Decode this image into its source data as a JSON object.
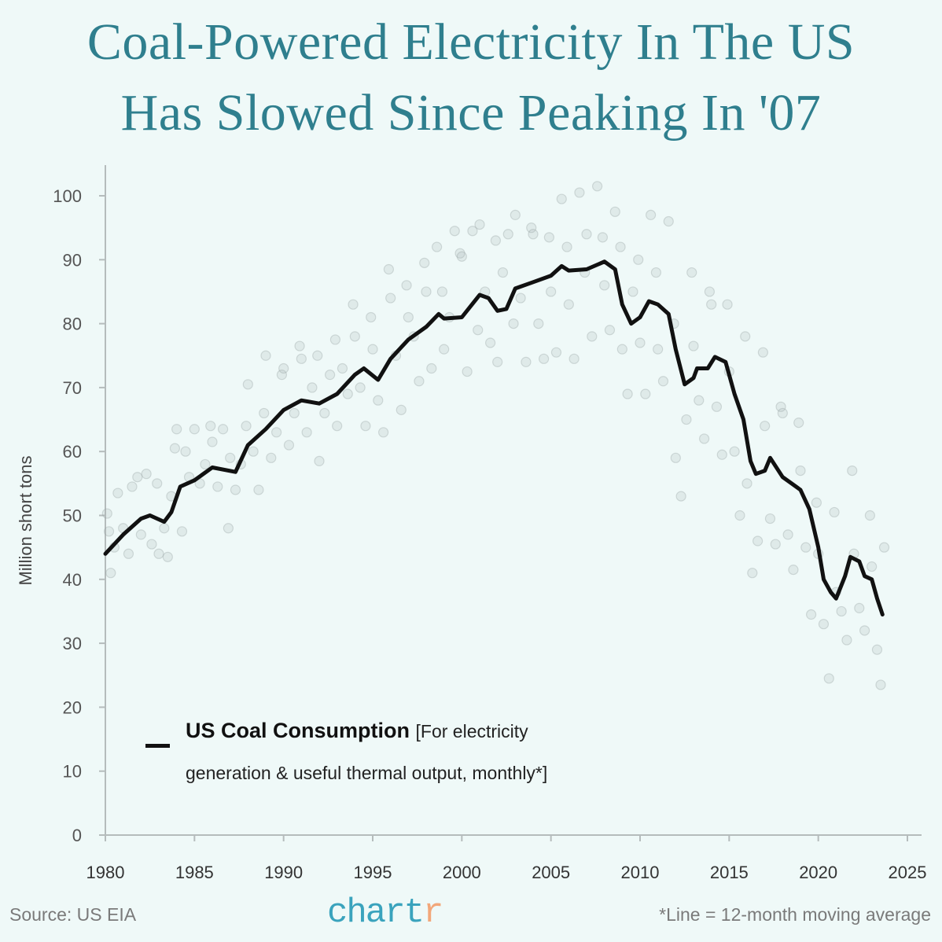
{
  "title_line1": "Coal-Powered Electricity In The US",
  "title_line2": "Has Slowed Since Peaking In '07",
  "source": "Source: US EIA",
  "logo": {
    "main": "chart",
    "accent": "r"
  },
  "footnote": "*Line = 12-month moving average",
  "colors": {
    "title": "#2f7f8e",
    "background": "#eff9f8",
    "line": "#111111",
    "points": "#b9bfbf",
    "logo": "#3aa3bd",
    "logo_accent": "#f2a77a"
  },
  "chart_data": {
    "type": "line",
    "ylabel": "Million short tons",
    "xlabel": "",
    "xlim": [
      1980,
      2025
    ],
    "ylim": [
      0,
      100
    ],
    "xticks": [
      "1980",
      "1985",
      "1990",
      "1995",
      "2000",
      "2005",
      "2010",
      "2015",
      "2020",
      "2025"
    ],
    "yticks": [
      "0",
      "10",
      "20",
      "30",
      "40",
      "50",
      "60",
      "70",
      "80",
      "90",
      "100"
    ],
    "grid": false,
    "legend": {
      "placement": "bottom-left",
      "label": "US Coal Consumption",
      "sub1": "[For electricity",
      "sub2": "generation & useful thermal output, monthly*]"
    },
    "line_series": [
      [
        1980,
        44
      ],
      [
        1981,
        47
      ],
      [
        1982,
        49.5
      ],
      [
        1982.5,
        50
      ],
      [
        1983.3,
        49
      ],
      [
        1983.7,
        50.5
      ],
      [
        1984.2,
        54.5
      ],
      [
        1985,
        55.5
      ],
      [
        1986,
        57.5
      ],
      [
        1987.3,
        56.8
      ],
      [
        1988,
        61
      ],
      [
        1989,
        63.5
      ],
      [
        1990,
        66.5
      ],
      [
        1991,
        68
      ],
      [
        1992,
        67.5
      ],
      [
        1993,
        69
      ],
      [
        1994,
        72
      ],
      [
        1994.5,
        73
      ],
      [
        1995.3,
        71.2
      ],
      [
        1996,
        74.5
      ],
      [
        1997,
        77.5
      ],
      [
        1998,
        79.5
      ],
      [
        1998.7,
        81.5
      ],
      [
        1999,
        80.8
      ],
      [
        2000,
        81
      ],
      [
        2001,
        84.5
      ],
      [
        2001.5,
        84
      ],
      [
        2002,
        82
      ],
      [
        2002.5,
        82.3
      ],
      [
        2003,
        85.5
      ],
      [
        2004,
        86.5
      ],
      [
        2005,
        87.5
      ],
      [
        2005.6,
        89
      ],
      [
        2006,
        88.3
      ],
      [
        2007,
        88.5
      ],
      [
        2008,
        89.7
      ],
      [
        2008.6,
        88.5
      ],
      [
        2009,
        83
      ],
      [
        2009.5,
        80
      ],
      [
        2010,
        81
      ],
      [
        2010.5,
        83.5
      ],
      [
        2011,
        83
      ],
      [
        2011.6,
        81.5
      ],
      [
        2012,
        76
      ],
      [
        2012.5,
        70.5
      ],
      [
        2013,
        71.5
      ],
      [
        2013.2,
        73
      ],
      [
        2013.8,
        73
      ],
      [
        2014.2,
        74.8
      ],
      [
        2014.8,
        74
      ],
      [
        2015.3,
        69
      ],
      [
        2015.8,
        65
      ],
      [
        2016.2,
        58.5
      ],
      [
        2016.5,
        56.5
      ],
      [
        2017,
        57
      ],
      [
        2017.3,
        59
      ],
      [
        2018,
        56
      ],
      [
        2018.5,
        55
      ],
      [
        2019,
        54
      ],
      [
        2019.5,
        51
      ],
      [
        2020,
        45
      ],
      [
        2020.3,
        40
      ],
      [
        2020.7,
        38
      ],
      [
        2021,
        37
      ],
      [
        2021.5,
        40.5
      ],
      [
        2021.8,
        43.5
      ],
      [
        2022.3,
        42.8
      ],
      [
        2022.6,
        40.5
      ],
      [
        2023,
        40
      ],
      [
        2023.3,
        37
      ],
      [
        2023.6,
        34.5
      ]
    ],
    "monthly_points": [
      [
        1980.1,
        50.3
      ],
      [
        1980.2,
        47.5
      ],
      [
        1980.3,
        41
      ],
      [
        1980.5,
        45
      ],
      [
        1980.7,
        53.5
      ],
      [
        1981,
        48
      ],
      [
        1981.3,
        44
      ],
      [
        1981.5,
        54.5
      ],
      [
        1981.8,
        56
      ],
      [
        1982,
        47
      ],
      [
        1982.3,
        56.5
      ],
      [
        1982.6,
        45.5
      ],
      [
        1982.9,
        55
      ],
      [
        1983,
        44
      ],
      [
        1983.3,
        48
      ],
      [
        1983.5,
        43.5
      ],
      [
        1983.7,
        53
      ],
      [
        1983.9,
        60.5
      ],
      [
        1984,
        63.5
      ],
      [
        1984.3,
        47.5
      ],
      [
        1984.5,
        60
      ],
      [
        1984.7,
        56
      ],
      [
        1985,
        63.5
      ],
      [
        1985.3,
        55
      ],
      [
        1985.6,
        58
      ],
      [
        1985.9,
        64
      ],
      [
        1986,
        61.5
      ],
      [
        1986.3,
        54.5
      ],
      [
        1986.6,
        63.5
      ],
      [
        1986.9,
        48
      ],
      [
        1987,
        59
      ],
      [
        1987.3,
        54
      ],
      [
        1987.6,
        58
      ],
      [
        1987.9,
        64
      ],
      [
        1988,
        70.5
      ],
      [
        1988.3,
        60
      ],
      [
        1988.6,
        54
      ],
      [
        1988.9,
        66
      ],
      [
        1989,
        75
      ],
      [
        1989.3,
        59
      ],
      [
        1989.6,
        63
      ],
      [
        1989.9,
        72
      ],
      [
        1990,
        73
      ],
      [
        1990.3,
        61
      ],
      [
        1990.6,
        66
      ],
      [
        1990.9,
        76.5
      ],
      [
        1991,
        74.5
      ],
      [
        1991.3,
        63
      ],
      [
        1991.6,
        70
      ],
      [
        1991.9,
        75
      ],
      [
        1992,
        58.5
      ],
      [
        1992.3,
        66
      ],
      [
        1992.6,
        72
      ],
      [
        1992.9,
        77.5
      ],
      [
        1993,
        64
      ],
      [
        1993.3,
        73
      ],
      [
        1993.6,
        69
      ],
      [
        1993.9,
        83
      ],
      [
        1994,
        78
      ],
      [
        1994.3,
        70
      ],
      [
        1994.6,
        64
      ],
      [
        1994.9,
        81
      ],
      [
        1995,
        76
      ],
      [
        1995.3,
        68
      ],
      [
        1995.6,
        63
      ],
      [
        1995.9,
        88.5
      ],
      [
        1996,
        84
      ],
      [
        1996.3,
        75
      ],
      [
        1996.6,
        66.5
      ],
      [
        1996.9,
        86
      ],
      [
        1997,
        81
      ],
      [
        1997.3,
        78
      ],
      [
        1997.6,
        71
      ],
      [
        1997.9,
        89.5
      ],
      [
        1998,
        85
      ],
      [
        1998.3,
        73
      ],
      [
        1998.6,
        92
      ],
      [
        1998.9,
        85
      ],
      [
        1999,
        76
      ],
      [
        1999.3,
        81
      ],
      [
        1999.6,
        94.5
      ],
      [
        1999.9,
        91
      ],
      [
        2000,
        90.5
      ],
      [
        2000.3,
        72.5
      ],
      [
        2000.6,
        94.5
      ],
      [
        2000.9,
        79
      ],
      [
        2001,
        95.5
      ],
      [
        2001.3,
        85
      ],
      [
        2001.6,
        77
      ],
      [
        2001.9,
        93
      ],
      [
        2002,
        74
      ],
      [
        2002.3,
        88
      ],
      [
        2002.6,
        94
      ],
      [
        2002.9,
        80
      ],
      [
        2003,
        97
      ],
      [
        2003.3,
        84
      ],
      [
        2003.6,
        74
      ],
      [
        2003.9,
        95
      ],
      [
        2004,
        94
      ],
      [
        2004.3,
        80
      ],
      [
        2004.6,
        74.5
      ],
      [
        2004.9,
        93.5
      ],
      [
        2005,
        85
      ],
      [
        2005.3,
        75.5
      ],
      [
        2005.6,
        99.5
      ],
      [
        2005.9,
        92
      ],
      [
        2006,
        83
      ],
      [
        2006.3,
        74.5
      ],
      [
        2006.6,
        100.5
      ],
      [
        2006.9,
        88
      ],
      [
        2007,
        94
      ],
      [
        2007.3,
        78
      ],
      [
        2007.6,
        101.5
      ],
      [
        2007.9,
        93.5
      ],
      [
        2008,
        86
      ],
      [
        2008.3,
        79
      ],
      [
        2008.6,
        97.5
      ],
      [
        2008.9,
        92
      ],
      [
        2009,
        76
      ],
      [
        2009.3,
        69
      ],
      [
        2009.6,
        85
      ],
      [
        2009.9,
        90
      ],
      [
        2010,
        77
      ],
      [
        2010.3,
        69
      ],
      [
        2010.6,
        97
      ],
      [
        2010.9,
        88
      ],
      [
        2011,
        76
      ],
      [
        2011.3,
        71
      ],
      [
        2011.6,
        96
      ],
      [
        2011.9,
        80
      ],
      [
        2012,
        59
      ],
      [
        2012.3,
        53
      ],
      [
        2012.6,
        65
      ],
      [
        2012.9,
        88
      ],
      [
        2013,
        76.5
      ],
      [
        2013.3,
        68
      ],
      [
        2013.6,
        62
      ],
      [
        2013.9,
        85
      ],
      [
        2014,
        83
      ],
      [
        2014.3,
        67
      ],
      [
        2014.6,
        59.5
      ],
      [
        2014.9,
        83
      ],
      [
        2015,
        72.5
      ],
      [
        2015.3,
        60
      ],
      [
        2015.6,
        50
      ],
      [
        2015.9,
        78
      ],
      [
        2016,
        55
      ],
      [
        2016.3,
        41
      ],
      [
        2016.6,
        46
      ],
      [
        2016.9,
        75.5
      ],
      [
        2017,
        64
      ],
      [
        2017.3,
        49.5
      ],
      [
        2017.6,
        45.5
      ],
      [
        2017.9,
        67
      ],
      [
        2018,
        66
      ],
      [
        2018.3,
        47
      ],
      [
        2018.6,
        41.5
      ],
      [
        2018.9,
        64.5
      ],
      [
        2019,
        57
      ],
      [
        2019.3,
        45
      ],
      [
        2019.6,
        34.5
      ],
      [
        2019.9,
        52
      ],
      [
        2020,
        44
      ],
      [
        2020.3,
        33
      ],
      [
        2020.6,
        24.5
      ],
      [
        2020.9,
        50.5
      ],
      [
        2021,
        38
      ],
      [
        2021.3,
        35
      ],
      [
        2021.6,
        30.5
      ],
      [
        2021.9,
        57
      ],
      [
        2022,
        44
      ],
      [
        2022.3,
        35.5
      ],
      [
        2022.6,
        32
      ],
      [
        2022.9,
        50
      ],
      [
        2023,
        42
      ],
      [
        2023.3,
        29
      ],
      [
        2023.5,
        23.5
      ],
      [
        2023.7,
        45
      ]
    ]
  }
}
